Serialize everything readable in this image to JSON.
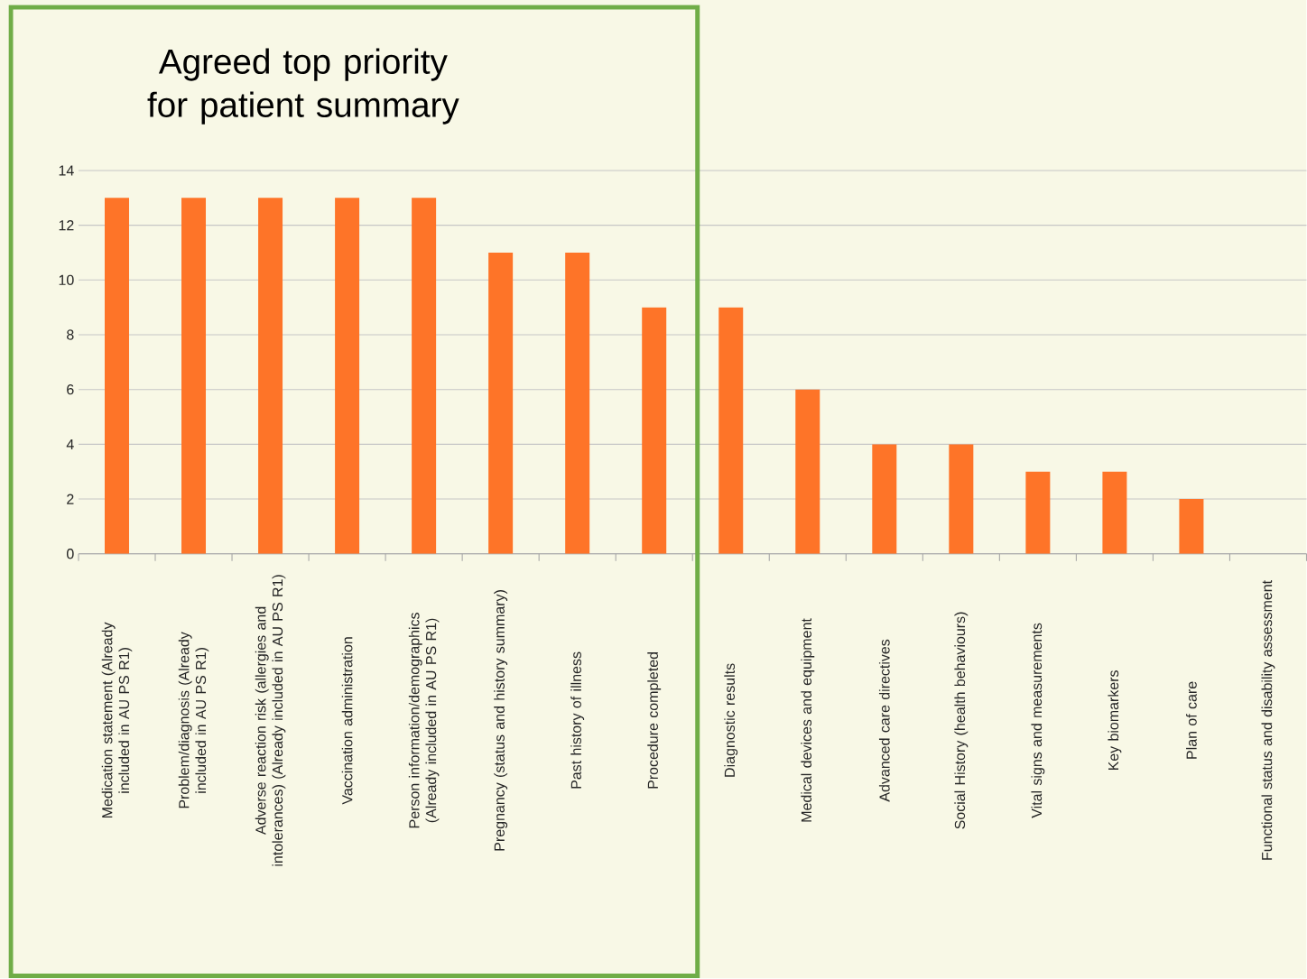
{
  "chart_data": {
    "type": "bar",
    "title": "Agreed top priority for patient summary",
    "categories": [
      "Medication statement (Already included in AU PS R1)",
      "Problem/diagnosis (Already included in AU PS R1)",
      "Adverse reaction risk (allergies and intolerances) (Already included in AU PS R1)",
      "Vaccination administration",
      "Person information/demographics (Already included in AU PS R1)",
      "Pregnancy (status and history summary)",
      "Past history of illness",
      "Procedure completed",
      "Diagnostic results",
      "Medical devices and equipment",
      "Advanced care directives",
      "Social History (health behaviours)",
      "Vital signs and measurements",
      "Key biomarkers",
      "Plan of care",
      "Functional status and disability assessment"
    ],
    "values": [
      13,
      13,
      13,
      13,
      13,
      11,
      11,
      9,
      9,
      6,
      4,
      4,
      3,
      3,
      2,
      0
    ],
    "color": "#fe7428",
    "ylim": [
      0,
      14
    ],
    "yticks": [
      0,
      2,
      4,
      6,
      8,
      10,
      12,
      14
    ],
    "grid": "y"
  }
}
